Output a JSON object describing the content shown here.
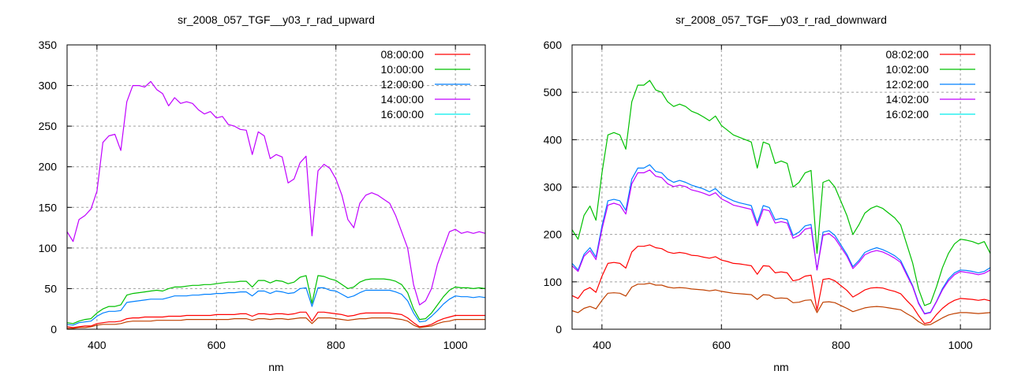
{
  "chart_data": [
    {
      "type": "line",
      "title": "sr_2008_057_TGF__y03_r_rad_upward",
      "xlabel": "nm",
      "ylabel": "",
      "xlim": [
        350,
        1050
      ],
      "ylim": [
        0,
        350
      ],
      "xticks": [
        400,
        600,
        800,
        1000
      ],
      "yticks": [
        0,
        50,
        100,
        150,
        200,
        250,
        300,
        350
      ],
      "grid": true,
      "legend_position": "top-right",
      "x_start": 350,
      "x_step": 10,
      "series": [
        {
          "name": "08:00:00",
          "legend_color": "#ff0000",
          "color": "#ff0000",
          "values": [
            3,
            2,
            3,
            4,
            4,
            7,
            8,
            9,
            9,
            10,
            13,
            14,
            14,
            15,
            15,
            15,
            15,
            16,
            16,
            16,
            17,
            17,
            17,
            17,
            17,
            18,
            18,
            18,
            18,
            19,
            19,
            16,
            19,
            19,
            18,
            19,
            19,
            18,
            19,
            21,
            21,
            10,
            21,
            21,
            20,
            19,
            18,
            16,
            17,
            19,
            20,
            20,
            20,
            20,
            20,
            19,
            18,
            14,
            8,
            3,
            4,
            6,
            10,
            13,
            15,
            17,
            17,
            17,
            17,
            17,
            17
          ]
        },
        {
          "name": "10:00:00",
          "legend_color": "#00c000",
          "color": "#00c000",
          "values": [
            8,
            7,
            10,
            12,
            13,
            20,
            25,
            28,
            28,
            30,
            42,
            44,
            45,
            46,
            47,
            48,
            47,
            50,
            52,
            52,
            53,
            54,
            54,
            55,
            55,
            56,
            57,
            58,
            58,
            59,
            59,
            52,
            60,
            60,
            57,
            60,
            59,
            56,
            58,
            64,
            66,
            32,
            66,
            65,
            62,
            60,
            55,
            50,
            52,
            58,
            61,
            62,
            62,
            62,
            61,
            59,
            55,
            45,
            25,
            12,
            13,
            20,
            30,
            40,
            48,
            52,
            51,
            51,
            50,
            51,
            50
          ]
        },
        {
          "name": "12:00:00",
          "legend_color": "#0080ff",
          "color": "#0080ff",
          "values": [
            6,
            5,
            8,
            9,
            10,
            16,
            20,
            22,
            22,
            23,
            33,
            34,
            35,
            36,
            37,
            37,
            37,
            39,
            41,
            41,
            41,
            42,
            42,
            43,
            43,
            44,
            44,
            45,
            45,
            46,
            46,
            41,
            47,
            47,
            44,
            47,
            46,
            44,
            45,
            50,
            51,
            28,
            51,
            51,
            48,
            47,
            43,
            39,
            41,
            45,
            48,
            48,
            48,
            48,
            48,
            46,
            43,
            35,
            20,
            9,
            10,
            16,
            23,
            31,
            37,
            41,
            40,
            40,
            39,
            40,
            39
          ]
        },
        {
          "name": "14:00:00",
          "legend_color": "#c000ff",
          "color": "#c000ff",
          "values": [
            120,
            108,
            135,
            140,
            148,
            170,
            230,
            238,
            240,
            220,
            280,
            300,
            300,
            298,
            305,
            295,
            290,
            275,
            285,
            278,
            280,
            278,
            270,
            265,
            268,
            260,
            262,
            252,
            250,
            246,
            245,
            215,
            243,
            238,
            210,
            215,
            212,
            180,
            185,
            205,
            213,
            115,
            195,
            203,
            198,
            185,
            165,
            135,
            125,
            155,
            165,
            168,
            165,
            160,
            155,
            140,
            120,
            100,
            55,
            30,
            35,
            50,
            80,
            100,
            120,
            123,
            118,
            120,
            118,
            120,
            118
          ]
        },
        {
          "name": "16:00:00",
          "legend_color": "#00eeee",
          "color": "#c04000",
          "values": [
            1,
            1,
            2,
            2,
            3,
            5,
            6,
            6,
            6,
            7,
            9,
            10,
            10,
            10,
            10,
            11,
            11,
            11,
            11,
            11,
            12,
            12,
            12,
            12,
            12,
            12,
            12,
            12,
            13,
            13,
            13,
            11,
            13,
            13,
            12,
            13,
            13,
            12,
            13,
            14,
            14,
            7,
            14,
            14,
            14,
            13,
            12,
            11,
            12,
            13,
            13,
            14,
            14,
            14,
            14,
            13,
            12,
            10,
            5,
            2,
            3,
            4,
            7,
            9,
            10,
            12,
            12,
            12,
            12,
            12,
            12
          ]
        }
      ]
    },
    {
      "type": "line",
      "title": "sr_2008_057_TGF__y03_r_rad_downward",
      "xlabel": "nm",
      "ylabel": "",
      "xlim": [
        350,
        1050
      ],
      "ylim": [
        0,
        600
      ],
      "xticks": [
        400,
        600,
        800,
        1000
      ],
      "yticks": [
        0,
        100,
        200,
        300,
        400,
        500,
        600
      ],
      "grid": true,
      "legend_position": "top-right",
      "x_start": 350,
      "x_step": 10,
      "series": [
        {
          "name": "08:02:00",
          "legend_color": "#ff0000",
          "color": "#ff0000",
          "values": [
            71,
            65,
            82,
            88,
            78,
            112,
            139,
            141,
            139,
            129,
            163,
            175,
            175,
            178,
            172,
            170,
            163,
            160,
            162,
            160,
            156,
            155,
            152,
            150,
            153,
            146,
            143,
            139,
            138,
            136,
            134,
            116,
            134,
            133,
            119,
            121,
            119,
            102,
            105,
            112,
            114,
            40,
            105,
            107,
            102,
            92,
            82,
            68,
            75,
            83,
            87,
            88,
            87,
            83,
            80,
            75,
            61,
            48,
            29,
            12,
            15,
            31,
            44,
            54,
            61,
            65,
            64,
            63,
            61,
            63,
            60
          ]
        },
        {
          "name": "10:02:00",
          "legend_color": "#00c000",
          "color": "#00c000",
          "values": [
            210,
            190,
            240,
            260,
            230,
            330,
            410,
            415,
            410,
            380,
            480,
            515,
            515,
            525,
            505,
            500,
            480,
            470,
            475,
            470,
            460,
            455,
            448,
            440,
            450,
            430,
            420,
            410,
            405,
            400,
            395,
            340,
            395,
            390,
            350,
            355,
            350,
            300,
            310,
            330,
            335,
            160,
            310,
            315,
            300,
            270,
            240,
            200,
            220,
            245,
            255,
            260,
            255,
            245,
            235,
            220,
            180,
            140,
            85,
            50,
            55,
            90,
            130,
            160,
            180,
            190,
            188,
            185,
            180,
            185,
            160
          ]
        },
        {
          "name": "12:02:00",
          "legend_color": "#0080ff",
          "color": "#0080ff",
          "values": [
            139,
            125,
            158,
            172,
            152,
            218,
            271,
            274,
            271,
            251,
            317,
            340,
            340,
            347,
            333,
            330,
            317,
            310,
            314,
            310,
            304,
            300,
            296,
            290,
            297,
            284,
            277,
            271,
            267,
            264,
            261,
            224,
            261,
            257,
            231,
            234,
            231,
            198,
            205,
            218,
            221,
            125,
            205,
            208,
            198,
            178,
            158,
            132,
            145,
            162,
            168,
            172,
            168,
            162,
            155,
            145,
            119,
            92,
            56,
            33,
            36,
            59,
            86,
            106,
            119,
            125,
            124,
            122,
            119,
            122,
            130
          ]
        },
        {
          "name": "14:02:00",
          "legend_color": "#c000ff",
          "color": "#c000ff",
          "values": [
            134,
            122,
            154,
            166,
            147,
            211,
            262,
            266,
            262,
            243,
            307,
            330,
            330,
            336,
            323,
            320,
            307,
            301,
            304,
            301,
            294,
            291,
            287,
            282,
            288,
            275,
            269,
            262,
            259,
            256,
            253,
            218,
            253,
            250,
            224,
            227,
            224,
            192,
            198,
            211,
            214,
            125,
            198,
            202,
            192,
            173,
            154,
            128,
            141,
            157,
            163,
            166,
            163,
            157,
            150,
            141,
            115,
            90,
            54,
            32,
            35,
            58,
            83,
            102,
            115,
            122,
            120,
            118,
            115,
            118,
            125
          ]
        },
        {
          "name": "16:02:00",
          "legend_color": "#00eeee",
          "color": "#c04000",
          "values": [
            39,
            35,
            44,
            48,
            43,
            61,
            76,
            77,
            76,
            70,
            89,
            95,
            95,
            97,
            93,
            93,
            89,
            87,
            88,
            87,
            85,
            84,
            83,
            81,
            83,
            80,
            78,
            76,
            75,
            74,
            73,
            63,
            73,
            72,
            65,
            66,
            65,
            56,
            57,
            61,
            62,
            35,
            57,
            58,
            56,
            50,
            44,
            37,
            41,
            45,
            47,
            48,
            47,
            45,
            43,
            41,
            33,
            26,
            16,
            9,
            10,
            17,
            24,
            30,
            33,
            35,
            35,
            34,
            33,
            34,
            35
          ]
        }
      ]
    }
  ]
}
